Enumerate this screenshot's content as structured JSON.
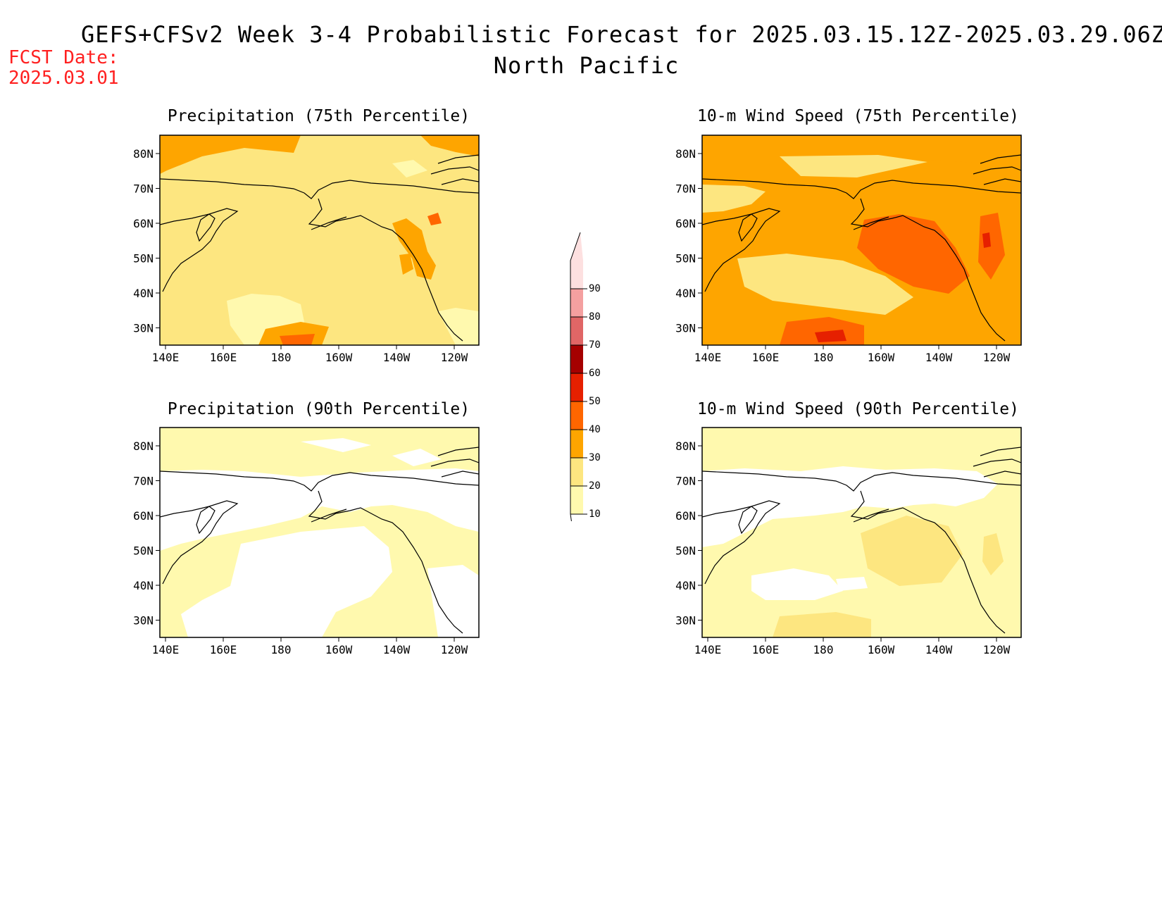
{
  "title": {
    "line1": "GEFS+CFSv2 Week 3-4 Probabilistic Forecast for 2025.03.15.12Z-2025.03.29.06Z",
    "line2": "North Pacific"
  },
  "forecast_date": {
    "label": "FCST Date:",
    "value": "2025.03.01"
  },
  "panels": [
    {
      "title": "Precipitation (75th Percentile)",
      "background_level": 20
    },
    {
      "title": "10-m Wind Speed (75th Percentile)",
      "background_level": 30
    },
    {
      "title": "Precipitation (90th Percentile)",
      "background_level": 10
    },
    {
      "title": "10-m Wind Speed (90th Percentile)",
      "background_level": 10
    }
  ],
  "axes": {
    "lon_labels": [
      "140E",
      "160E",
      "180",
      "160W",
      "140W",
      "120W"
    ],
    "lat_labels": [
      "80N",
      "70N",
      "60N",
      "50N",
      "40N",
      "30N"
    ]
  },
  "colorbar": {
    "levels": [
      "10",
      "20",
      "30",
      "40",
      "50",
      "60",
      "70",
      "80",
      "90"
    ],
    "colors": [
      "#fff9ae",
      "#fde680",
      "#fea500",
      "#ff6600",
      "#e62000",
      "#a50000",
      "#e06666",
      "#f4a0a0",
      "#fde0e0"
    ]
  },
  "colors": {
    "below10": "#ffffff",
    "10": "#fff9ae",
    "20": "#fde680",
    "30": "#fea500",
    "40": "#ff6600",
    "50": "#e62000",
    "60": "#a50000",
    "70": "#e06666",
    "80": "#f4a0a0",
    "90": "#fde0e0"
  }
}
